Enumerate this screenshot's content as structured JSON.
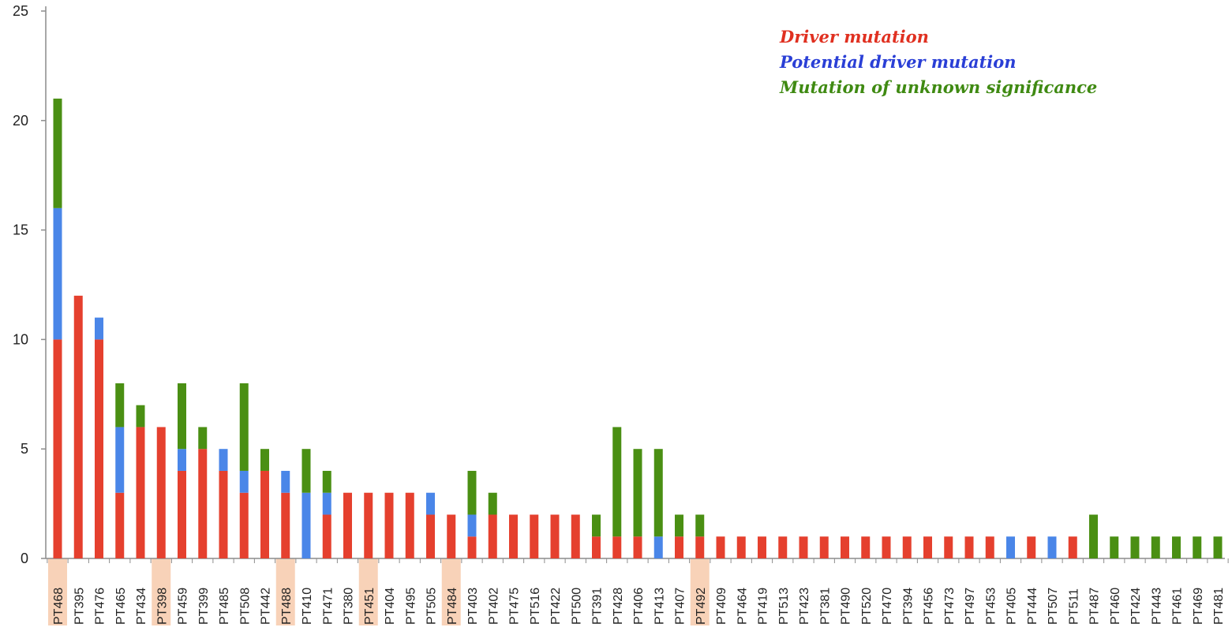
{
  "chart_data": {
    "type": "bar",
    "stacked": true,
    "title": "",
    "xlabel": "",
    "ylabel": "",
    "ylim": [
      0,
      25
    ],
    "yticks": [
      0,
      5,
      10,
      15,
      20,
      25
    ],
    "grid": false,
    "legend_position": "top-right",
    "categories": [
      "PT468",
      "PT395",
      "PT476",
      "PT465",
      "PT434",
      "PT398",
      "PT459",
      "PT399",
      "PT485",
      "PT508",
      "PT442",
      "PT488",
      "PT410",
      "PT471",
      "PT380",
      "PT451",
      "PT404",
      "PT495",
      "PT505",
      "PT484",
      "PT403",
      "PT402",
      "PT475",
      "PT516",
      "PT422",
      "PT500",
      "PT391",
      "PT428",
      "PT406",
      "PT413",
      "PT407",
      "PT492",
      "PT409",
      "PT464",
      "PT419",
      "PT513",
      "PT423",
      "PT381",
      "PT490",
      "PT520",
      "PT470",
      "PT394",
      "PT456",
      "PT473",
      "PT497",
      "PT453",
      "PT405",
      "PT444",
      "PT507",
      "PT511",
      "PT487",
      "PT460",
      "PT424",
      "PT443",
      "PT461",
      "PT469",
      "PT481"
    ],
    "highlighted": [
      "PT468",
      "PT398",
      "PT488",
      "PT451",
      "PT484",
      "PT492"
    ],
    "highlight_color": "#f8d2b8",
    "series": [
      {
        "name": "Driver mutation",
        "color": "#e5402e",
        "label_color": "#e03020",
        "values": [
          10,
          12,
          10,
          3,
          6,
          6,
          4,
          5,
          4,
          3,
          4,
          3,
          0,
          2,
          3,
          3,
          3,
          3,
          2,
          2,
          1,
          2,
          2,
          2,
          2,
          2,
          1,
          1,
          1,
          0,
          1,
          1,
          1,
          1,
          1,
          1,
          1,
          1,
          1,
          1,
          1,
          1,
          1,
          1,
          1,
          1,
          0,
          1,
          0,
          1,
          0,
          0,
          0,
          0,
          0,
          0,
          0
        ]
      },
      {
        "name": "Potential driver mutation",
        "color": "#4a86e8",
        "label_color": "#2a3fd6",
        "values": [
          6,
          0,
          1,
          3,
          0,
          0,
          1,
          0,
          1,
          1,
          0,
          1,
          3,
          1,
          0,
          0,
          0,
          0,
          1,
          0,
          1,
          0,
          0,
          0,
          0,
          0,
          0,
          0,
          0,
          1,
          0,
          0,
          0,
          0,
          0,
          0,
          0,
          0,
          0,
          0,
          0,
          0,
          0,
          0,
          0,
          0,
          1,
          0,
          1,
          0,
          0,
          0,
          0,
          0,
          0,
          0,
          0
        ]
      },
      {
        "name": "Mutation of unknown significance",
        "color": "#4a8f13",
        "label_color": "#3f8a12",
        "values": [
          5,
          0,
          0,
          2,
          1,
          0,
          3,
          1,
          0,
          4,
          1,
          0,
          2,
          1,
          0,
          0,
          0,
          0,
          0,
          0,
          2,
          1,
          0,
          0,
          0,
          0,
          1,
          5,
          4,
          4,
          1,
          1,
          0,
          0,
          0,
          0,
          0,
          0,
          0,
          0,
          0,
          0,
          0,
          0,
          0,
          0,
          0,
          0,
          0,
          0,
          2,
          1,
          1,
          1,
          1,
          1,
          1
        ]
      }
    ]
  }
}
